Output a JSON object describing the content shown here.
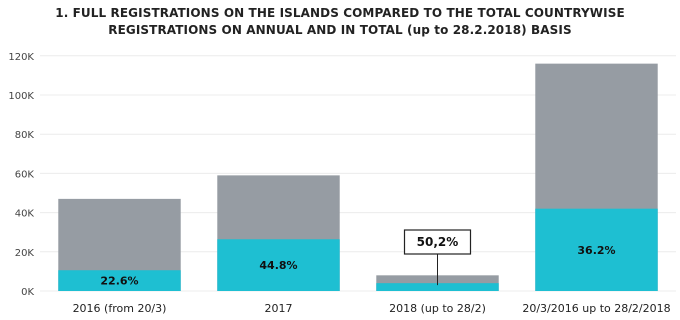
{
  "chart_data": {
    "type": "bar",
    "title_line1": "1. FULL REGISTRATIONS ON THE ISLANDS COMPARED TO THE TOTAL COUNTRYWISE",
    "title_line2": "REGISTRATIONS ON ANNUAL AND IN TOTAL (up to 28.2.2018) BASIS",
    "categories": [
      "2016 (from 20/3)",
      "2017",
      "2018 (up to 28/2)",
      "20/3/2016 up to 28/2/2018"
    ],
    "series": [
      {
        "values": [
          47000,
          59000,
          8000,
          116000
        ],
        "color": "#969ca3"
      },
      {
        "values": [
          10600,
          26400,
          4000,
          42000
        ],
        "color": "#1ebfd2"
      }
    ],
    "data_labels": [
      "22.6%",
      "44.8%",
      "50,2%",
      "36.2%"
    ],
    "yticks": [
      0,
      20000,
      40000,
      60000,
      80000,
      100000,
      120000
    ],
    "ytick_labels": [
      "0K",
      "20K",
      "40K",
      "60K",
      "80K",
      "100K",
      "120K"
    ],
    "ylim": [
      0,
      125000
    ],
    "grid": true,
    "xlabel": "",
    "ylabel": ""
  }
}
